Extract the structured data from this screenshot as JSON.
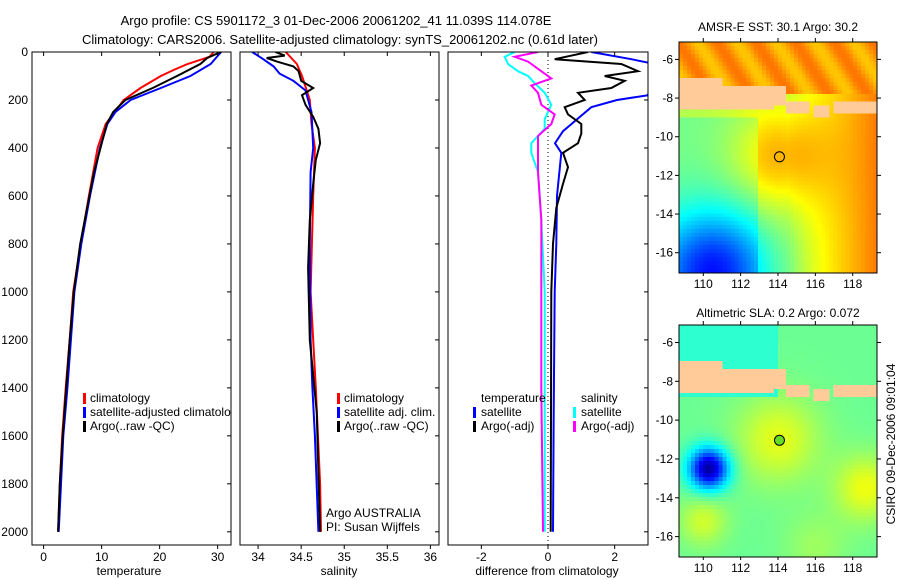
{
  "title": {
    "line1": "Argo profile: CS 5901172_3 01-Dec-2006 20061202_41 11.039S 114.078E",
    "line2": "Climatology: CARS2006. Satellite-adjusted climatology: synTS_20061202.nc (0.61d later)"
  },
  "colors": {
    "climatology": "#ff0000",
    "satellite": "#0000ff",
    "argo": "#000000",
    "sal_satellite": "#00ffff",
    "sal_argo": "#ff00ff",
    "land": "#ffcc99"
  },
  "chart_data": [
    {
      "type": "line",
      "xlabel": "temperature",
      "ylabel": "",
      "xlim": [
        -2,
        32.3
      ],
      "ylim": [
        2055,
        0
      ],
      "xticks": [
        "0",
        "10",
        "20",
        "30"
      ],
      "xtick_values": [
        0,
        10,
        20,
        30
      ],
      "yticks": [
        "0",
        "200",
        "400",
        "600",
        "800",
        "1000",
        "1200",
        "1400",
        "1600",
        "1800",
        "2000"
      ],
      "ytick_values": [
        0,
        200,
        400,
        600,
        800,
        1000,
        1200,
        1400,
        1600,
        1800,
        2000
      ],
      "legend": [
        "climatology",
        "satellite-adjusted climatology",
        "Argo(..raw -QC)"
      ],
      "series": [
        {
          "name": "climatology",
          "color": "#ff0000",
          "depth": [
            0,
            20,
            50,
            75,
            100,
            150,
            200,
            300,
            400,
            600,
            800,
            1000,
            1200,
            1400,
            1600,
            1800,
            2000
          ],
          "values": [
            29.3,
            28.6,
            24.8,
            22.4,
            20.2,
            16.7,
            13.8,
            10.7,
            9.3,
            7.8,
            6.4,
            5.1,
            4.5,
            3.8,
            3.2,
            2.8,
            2.5
          ]
        },
        {
          "name": "satellite-adjusted climatology",
          "color": "#0000ff",
          "depth": [
            0,
            50,
            100,
            150,
            200,
            250,
            300,
            400,
            600,
            800,
            1000,
            1200,
            1400,
            1600,
            1800,
            2000
          ],
          "values": [
            30.6,
            28.8,
            25.3,
            20.2,
            15.0,
            12.4,
            11.0,
            9.7,
            8.0,
            6.5,
            5.3,
            4.7,
            4.1,
            3.4,
            3.0,
            2.6
          ]
        },
        {
          "name": "Argo(..raw -QC)",
          "color": "#000000",
          "depth": [
            0,
            25,
            50,
            100,
            150,
            200,
            250,
            300,
            400,
            500,
            600,
            800,
            1000,
            1200,
            1400,
            1600,
            1800,
            2000
          ],
          "values": [
            30.5,
            28.2,
            27.0,
            23.0,
            18.8,
            14.1,
            12.0,
            10.9,
            9.8,
            8.7,
            7.9,
            6.3,
            5.2,
            4.5,
            3.9,
            3.3,
            2.8,
            2.5
          ]
        }
      ]
    },
    {
      "type": "line",
      "xlabel": "salinity",
      "xlim": [
        33.79,
        36.1
      ],
      "ylim": [
        2055,
        0
      ],
      "xticks": [
        "34",
        "34.5",
        "35",
        "35.5",
        "36"
      ],
      "xtick_values": [
        34,
        34.5,
        35,
        35.5,
        36
      ],
      "legend": [
        "climatology",
        "satellite adj. clim.",
        "Argo(..raw -QC)"
      ],
      "annotation": [
        "Argo AUSTRALIA",
        "PI: Susan Wijffels"
      ],
      "series": [
        {
          "name": "climatology",
          "color": "#ff0000",
          "depth": [
            0,
            50,
            100,
            200,
            300,
            400,
            600,
            1000,
            1400,
            1800,
            2000
          ],
          "values": [
            34.32,
            34.45,
            34.51,
            34.6,
            34.62,
            34.66,
            34.64,
            34.61,
            34.67,
            34.72,
            34.73
          ]
        },
        {
          "name": "satellite adj. clim.",
          "color": "#0000ff",
          "depth": [
            0,
            30,
            60,
            90,
            120,
            160,
            250,
            400,
            500,
            800,
            1200,
            1400,
            1600,
            2000
          ],
          "values": [
            33.93,
            34.06,
            34.18,
            34.25,
            34.41,
            34.55,
            34.62,
            34.64,
            34.61,
            34.6,
            34.61,
            34.63,
            34.66,
            34.7
          ]
        },
        {
          "name": "Argo(..raw -QC)",
          "color": "#000000",
          "depth": [
            0,
            15,
            25,
            40,
            60,
            80,
            120,
            150,
            180,
            220,
            270,
            320,
            380,
            450,
            550,
            700,
            900,
            1200,
            1500,
            2000
          ],
          "values": [
            34.2,
            34.31,
            34.1,
            34.22,
            34.41,
            34.47,
            34.5,
            34.64,
            34.51,
            34.55,
            34.64,
            34.7,
            34.72,
            34.67,
            34.64,
            34.6,
            34.58,
            34.6,
            34.68,
            34.72
          ]
        }
      ]
    },
    {
      "type": "line",
      "xlabel": "difference from climatology",
      "xlim": [
        -3,
        3
      ],
      "ylim": [
        2055,
        0
      ],
      "xticks": [
        "-2",
        "0",
        "2"
      ],
      "xtick_values": [
        -2,
        0,
        2
      ],
      "legend_temperature_title": "temperature",
      "legend_salinity_title": "salinity",
      "legend": [
        "satellite",
        "Argo(-adj)",
        "satellite",
        "Argo(-adj)"
      ],
      "series": [
        {
          "name": "temperature satellite",
          "color": "#0000ff",
          "depth": [
            0,
            30,
            50,
            180,
            200,
            230,
            270,
            330,
            380,
            420,
            600,
            800,
            1000,
            1500,
            2000
          ],
          "values": [
            1.3,
            2.5,
            3.2,
            3.0,
            2.07,
            1.3,
            0.96,
            0.45,
            0.21,
            0.4,
            0.27,
            0.25,
            0.2,
            0.17,
            0.15
          ]
        },
        {
          "name": "temperature Argo(-adj)",
          "color": "#000000",
          "depth": [
            0,
            30,
            50,
            80,
            100,
            120,
            150,
            170,
            200,
            230,
            260,
            300,
            340,
            380,
            420,
            480,
            550,
            650,
            800,
            1000,
            2000
          ],
          "values": [
            1.2,
            0.2,
            2.2,
            2.7,
            1.7,
            2.3,
            1.9,
            0.9,
            1.1,
            0.5,
            0.6,
            1.0,
            1.0,
            0.9,
            0.45,
            0.6,
            0.45,
            0.25,
            0.15,
            0.1,
            0.08
          ]
        },
        {
          "name": "salinity satellite",
          "color": "#00ffff",
          "depth": [
            0,
            20,
            50,
            80,
            100,
            130,
            170,
            220,
            280,
            320,
            380,
            420,
            500,
            700,
            1000,
            2000
          ],
          "values": [
            -1.0,
            -1.3,
            -1.2,
            -0.9,
            -0.6,
            -0.4,
            -0.1,
            0.1,
            -0.1,
            -0.1,
            -0.5,
            -0.5,
            -0.3,
            -0.2,
            -0.1,
            -0.1
          ]
        },
        {
          "name": "salinity Argo(-adj)",
          "color": "#ff00ff",
          "depth": [
            0,
            20,
            40,
            60,
            80,
            110,
            140,
            170,
            220,
            260,
            300,
            350,
            400,
            500,
            700,
            1000,
            1400,
            2000
          ],
          "values": [
            -0.3,
            -1.0,
            -0.6,
            -0.4,
            -0.2,
            0.1,
            -0.5,
            -0.3,
            -0.2,
            0.2,
            0.1,
            -0.3,
            -0.3,
            -0.3,
            -0.2,
            -0.2,
            -0.2,
            -0.15
          ]
        }
      ]
    }
  ],
  "maps": [
    {
      "title": "AMSR-E SST: 30.1 Argo: 30.2",
      "lon_ticks": [
        "110",
        "112",
        "114",
        "116",
        "118"
      ],
      "lon_values": [
        110,
        112,
        114,
        116,
        118
      ],
      "lat_ticks": [
        "-6",
        "-8",
        "-10",
        "-12",
        "-14",
        "-16"
      ],
      "lat_values": [
        -6,
        -8,
        -10,
        -12,
        -14,
        -16
      ],
      "argo_lon": 114.078,
      "argo_lat": -11.039,
      "lon_range": [
        108.7,
        119.3
      ],
      "lat_range": [
        -5.1,
        -17.05
      ],
      "field": "sst"
    },
    {
      "title": "Altimetric SLA: 0.2 Argo: 0.072",
      "lon_ticks": [
        "110",
        "112",
        "114",
        "116",
        "118"
      ],
      "lon_values": [
        110,
        112,
        114,
        116,
        118
      ],
      "lat_ticks": [
        "-6",
        "-8",
        "-10",
        "-12",
        "-14",
        "-16"
      ],
      "lat_values": [
        -6,
        -8,
        -10,
        -12,
        -14,
        -16
      ],
      "argo_lon": 114.078,
      "argo_lat": -11.039,
      "lon_range": [
        108.7,
        119.3
      ],
      "lat_range": [
        -5.1,
        -17.05
      ],
      "field": "sla"
    }
  ],
  "footer": {
    "credit": "CSIRO 09-Dec-2006 09:01:04"
  }
}
